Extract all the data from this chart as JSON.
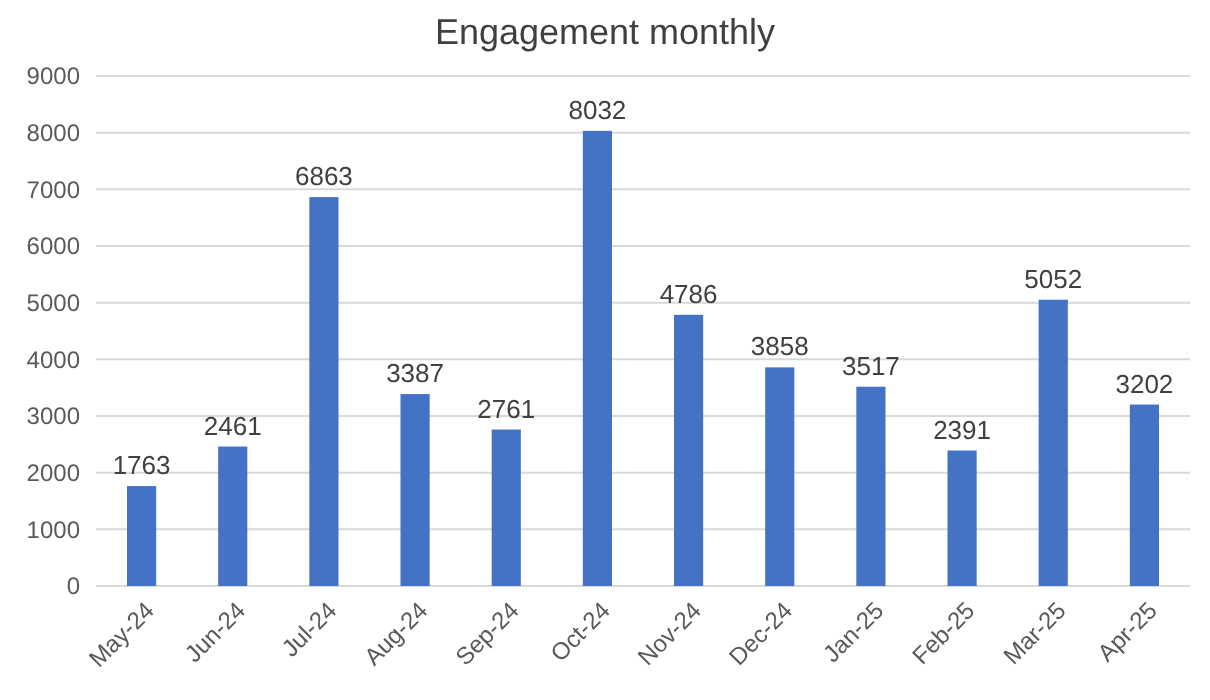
{
  "chart_data": {
    "type": "bar",
    "title": "Engagement monthly",
    "categories": [
      "May-24",
      "Jun-24",
      "Jul-24",
      "Aug-24",
      "Sep-24",
      "Oct-24",
      "Nov-24",
      "Dec-24",
      "Jan-25",
      "Feb-25",
      "Mar-25",
      "Apr-25"
    ],
    "values": [
      1763,
      2461,
      6863,
      3387,
      2761,
      8032,
      4786,
      3858,
      3517,
      2391,
      5052,
      3202
    ],
    "color": "#4472c4",
    "ylim": [
      0,
      9000
    ],
    "yticks": [
      0,
      1000,
      2000,
      3000,
      4000,
      5000,
      6000,
      7000,
      8000,
      9000
    ],
    "grid": "y",
    "data_labels": true
  }
}
